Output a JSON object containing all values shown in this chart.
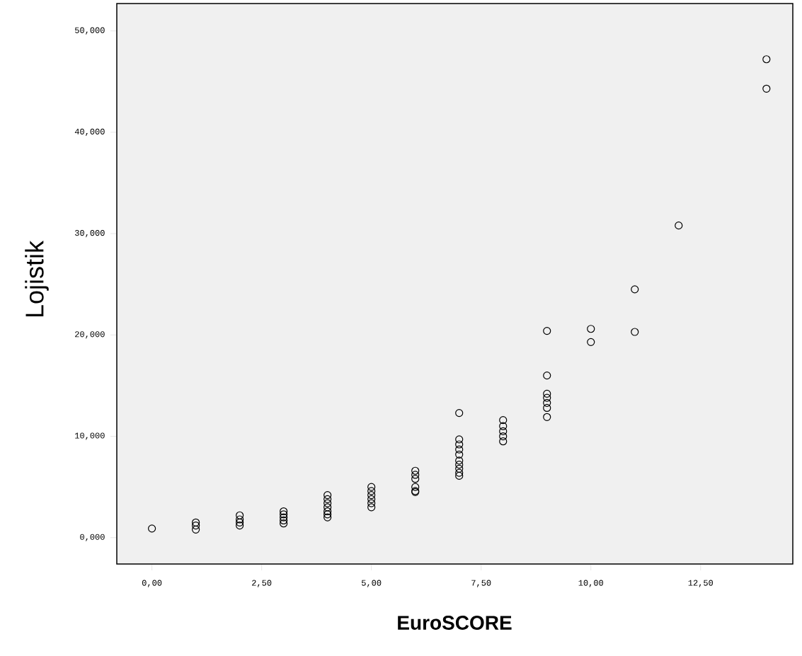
{
  "chart_data": {
    "type": "scatter",
    "xlabel": "EuroSCORE",
    "ylabel": "Lojistik",
    "x": [
      0,
      1,
      1,
      1,
      2,
      2,
      2,
      2,
      3,
      3,
      3,
      3,
      3,
      4,
      4,
      4,
      4,
      4,
      4,
      4,
      5,
      5,
      5,
      5,
      5,
      5,
      6,
      6,
      6,
      6,
      6,
      6,
      7,
      7,
      7,
      7,
      7,
      7,
      7,
      7,
      7,
      7,
      8,
      8,
      8,
      8,
      8,
      9,
      9,
      9,
      9,
      9,
      9,
      9,
      10,
      10,
      11,
      11,
      12,
      14,
      14
    ],
    "values": [
      0.9,
      1.5,
      1.2,
      0.8,
      2.2,
      1.8,
      1.5,
      1.2,
      2.6,
      2.3,
      2.0,
      1.7,
      1.4,
      4.2,
      3.8,
      3.4,
      3.0,
      2.6,
      2.3,
      2.0,
      5.0,
      4.6,
      4.2,
      3.8,
      3.4,
      3.0,
      6.6,
      6.2,
      5.8,
      5.0,
      4.6,
      4.5,
      12.3,
      9.7,
      9.2,
      8.7,
      8.2,
      7.6,
      7.2,
      6.8,
      6.4,
      6.1,
      11.6,
      11.0,
      10.5,
      10.0,
      9.5,
      20.4,
      16.0,
      14.2,
      13.8,
      13.3,
      12.8,
      11.9,
      20.6,
      19.3,
      24.5,
      20.3,
      30.8,
      47.2,
      44.3
    ],
    "color": "#000000",
    "marker": "circle",
    "grid": false,
    "xlim": [
      -0.8,
      14.6
    ],
    "ylim": [
      -2.6,
      52.7
    ],
    "xticks": [
      {
        "value": 0,
        "label": "0,00"
      },
      {
        "value": 2.5,
        "label": "2,50"
      },
      {
        "value": 5,
        "label": "5,00"
      },
      {
        "value": 7.5,
        "label": "7,50"
      },
      {
        "value": 10,
        "label": "10,00"
      },
      {
        "value": 12.5,
        "label": "12,50"
      }
    ],
    "yticks": [
      {
        "value": 0,
        "label": "0,000"
      },
      {
        "value": 10,
        "label": "10,000"
      },
      {
        "value": 20,
        "label": "20,000"
      },
      {
        "value": 30,
        "label": "30,000"
      },
      {
        "value": 40,
        "label": "40,000"
      },
      {
        "value": 50,
        "label": "50,000"
      }
    ]
  }
}
